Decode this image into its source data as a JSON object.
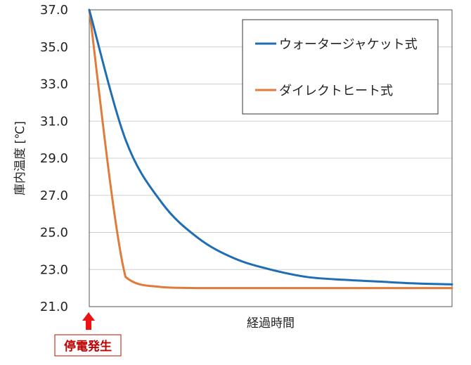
{
  "chart_data": {
    "type": "line",
    "title": "",
    "xlabel": "経過時間",
    "ylabel": "庫内温度 [℃]",
    "ylim": [
      21.0,
      37.0
    ],
    "yticks": [
      "37.0",
      "35.0",
      "33.0",
      "31.0",
      "29.0",
      "27.0",
      "25.0",
      "23.0",
      "21.0"
    ],
    "x_tick_labels": false,
    "grid": "horizontal",
    "legend_position": "top-right",
    "x": [
      0,
      0.1,
      0.2,
      0.3,
      0.4,
      0.5,
      0.6,
      0.7,
      0.8,
      0.9,
      1.0
    ],
    "series": [
      {
        "name": "ウォータージャケット式",
        "color": "#1f6db2",
        "values": [
          37.0,
          30.0,
          26.6,
          24.7,
          23.6,
          23.0,
          22.6,
          22.45,
          22.35,
          22.25,
          22.2
        ]
      },
      {
        "name": "ダイレクトヒート式",
        "color": "#e07b3a",
        "values": [
          37.0,
          22.6,
          22.05,
          22.0,
          22.0,
          22.0,
          22.0,
          22.0,
          22.0,
          22.0,
          22.0
        ]
      }
    ],
    "annotations": [
      {
        "text": "停電発生",
        "color": "#c00000",
        "x": 0
      }
    ]
  }
}
